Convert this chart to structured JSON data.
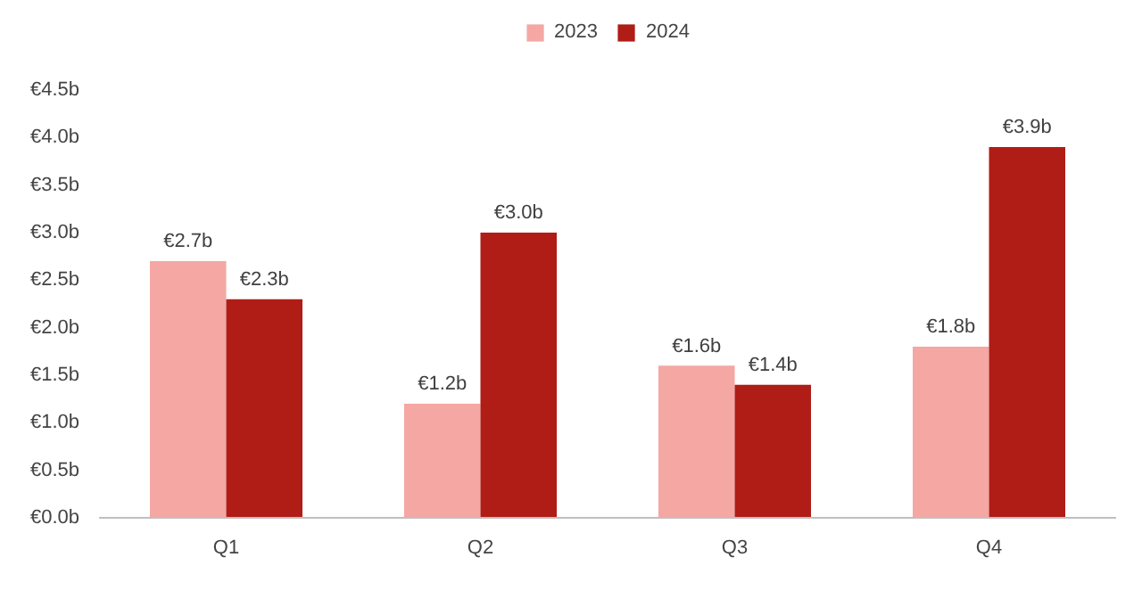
{
  "chart_data": {
    "type": "bar",
    "categories": [
      "Q1",
      "Q2",
      "Q3",
      "Q4"
    ],
    "series": [
      {
        "name": "2023",
        "color": "#f4a7a3",
        "values": [
          2.7,
          1.2,
          1.6,
          1.8
        ],
        "value_labels": [
          "€2.7b",
          "€1.2b",
          "€1.6b",
          "€1.8b"
        ]
      },
      {
        "name": "2024",
        "color": "#b01c16",
        "values": [
          2.3,
          3.0,
          1.4,
          3.9
        ],
        "value_labels": [
          "€2.3b",
          "€3.0b",
          "€1.4b",
          "€3.9b"
        ]
      }
    ],
    "ylim": [
      0,
      4.5
    ],
    "yticks": [
      {
        "value": 0,
        "label": "€0.0b"
      },
      {
        "value": 0.5,
        "label": "€0.5b"
      },
      {
        "value": 1,
        "label": "€1.0b"
      },
      {
        "value": 1.5,
        "label": "€1.5b"
      },
      {
        "value": 2,
        "label": "€2.0b"
      },
      {
        "value": 2.5,
        "label": "€2.5b"
      },
      {
        "value": 3,
        "label": "€3.0b"
      },
      {
        "value": 3.5,
        "label": "€3.5b"
      },
      {
        "value": 4,
        "label": "€4.0b"
      },
      {
        "value": 4.5,
        "label": "€4.5b"
      }
    ],
    "grid": false,
    "legend": "top"
  }
}
